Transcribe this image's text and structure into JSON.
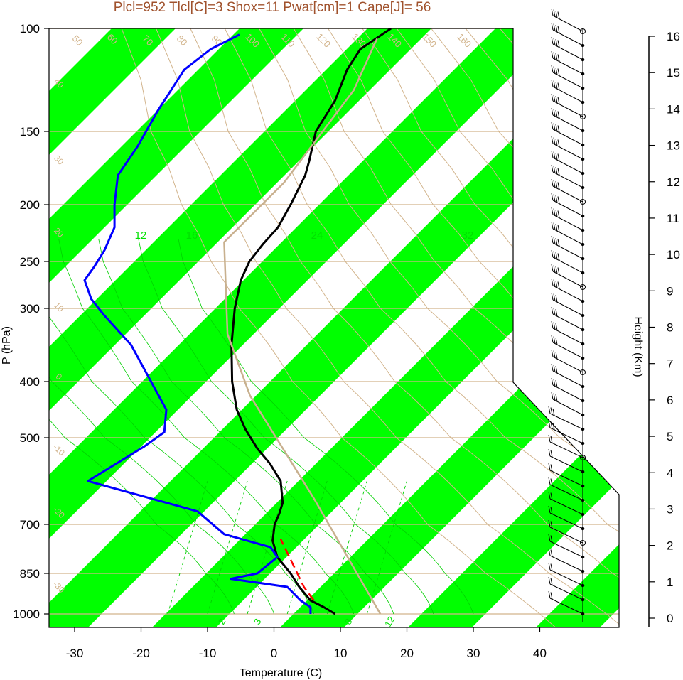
{
  "chart_data": {
    "type": "line",
    "title": "Plcl=952 Tlcl[C]=3 Shox=11 Pwat[cm]=1 Cape[J]= 56",
    "xlabel": "Temperature (C)",
    "ylabel": "P (hPa)",
    "ylabel_right": "Height (Km)",
    "x_ticks": [
      -30,
      -20,
      -10,
      0,
      10,
      20,
      30,
      40
    ],
    "pressure_ticks": [
      100,
      150,
      200,
      250,
      300,
      400,
      500,
      700,
      850,
      1000
    ],
    "height_ticks": [
      0,
      1,
      2,
      3,
      4,
      5,
      6,
      7,
      8,
      9,
      10,
      11,
      12,
      13,
      14,
      15,
      16
    ],
    "xlim": [
      -33,
      43
    ],
    "plim": [
      1050,
      100
    ],
    "dry_adiabat_labels": [
      "50",
      "60",
      "70",
      "80",
      "90",
      "100",
      "110",
      "120",
      "130",
      "140",
      "150",
      "160"
    ],
    "band_labels": [
      "40",
      "30",
      "20",
      "10",
      "0",
      "-10",
      "-20",
      "-30"
    ],
    "moist_labels": [
      "12",
      "16",
      "24",
      "32"
    ],
    "mixing_labels": [
      "2",
      "3",
      "8",
      "12"
    ],
    "right_labels": [
      "30",
      "20",
      "10",
      "0",
      "10",
      "20",
      "30"
    ],
    "colors": {
      "temperature": "#000000",
      "dewpoint": "#0000ff",
      "parcel": "#c8b08e",
      "lcl_parcel": "#ff0000",
      "band": "#00ff00",
      "dry_adiabat": "#d2b48c",
      "title": "#a0522d"
    },
    "series": [
      {
        "name": "Temperature",
        "points": [
          [
            9.2,
            1000
          ],
          [
            7.5,
            975
          ],
          [
            5.5,
            950
          ],
          [
            3.8,
            900
          ],
          [
            2.5,
            850
          ],
          [
            0.5,
            800
          ],
          [
            -0.2,
            750
          ],
          [
            0.1,
            700
          ],
          [
            0.8,
            675
          ],
          [
            1.3,
            650
          ],
          [
            1.0,
            600
          ],
          [
            -0.6,
            560
          ],
          [
            -2.5,
            525
          ],
          [
            -4.3,
            485
          ],
          [
            -5.6,
            450
          ],
          [
            -6.3,
            400
          ],
          [
            -6.4,
            350
          ],
          [
            -5.9,
            300
          ],
          [
            -5.0,
            270
          ],
          [
            -3.7,
            250
          ],
          [
            -1.7,
            235
          ],
          [
            0.6,
            220
          ],
          [
            2.5,
            200
          ],
          [
            4.7,
            180
          ],
          [
            5.3,
            170
          ],
          [
            6.3,
            150
          ],
          [
            9.2,
            135
          ],
          [
            11.0,
            120
          ],
          [
            13.0,
            110
          ],
          [
            17.6,
            100
          ]
        ]
      },
      {
        "name": "Dewpoint",
        "points": [
          [
            5.5,
            1000
          ],
          [
            5.5,
            975
          ],
          [
            4.0,
            950
          ],
          [
            2.0,
            900
          ],
          [
            -6.5,
            870
          ],
          [
            -2.5,
            850
          ],
          [
            0.5,
            800
          ],
          [
            -0.5,
            770
          ],
          [
            -7.5,
            730
          ],
          [
            -11.5,
            670
          ],
          [
            -28,
            600
          ],
          [
            -19.5,
            520
          ],
          [
            -16.5,
            490
          ],
          [
            -16.2,
            450
          ],
          [
            -18.5,
            400
          ],
          [
            -21.5,
            350
          ],
          [
            -25.5,
            310
          ],
          [
            -27.5,
            290
          ],
          [
            -28.5,
            270
          ],
          [
            -27.0,
            255
          ],
          [
            -25.5,
            240
          ],
          [
            -24.0,
            220
          ],
          [
            -24.0,
            200
          ],
          [
            -23.5,
            180
          ],
          [
            -20.5,
            160
          ],
          [
            -17.5,
            140
          ],
          [
            -13.5,
            120
          ],
          [
            -9.5,
            110
          ],
          [
            -5.2,
            103
          ]
        ]
      },
      {
        "name": "Parcel",
        "points": [
          [
            16.0,
            1000
          ],
          [
            6.0,
            640
          ],
          [
            -3.6,
            425
          ],
          [
            -7.0,
            335
          ],
          [
            -7.5,
            233
          ],
          [
            1.5,
            185
          ],
          [
            12.0,
            130
          ],
          [
            15.5,
            105
          ]
        ]
      },
      {
        "name": "LCL parcel",
        "points": [
          [
            6.0,
            950
          ],
          [
            4.5,
            900
          ],
          [
            1.0,
            745
          ]
        ]
      }
    ]
  }
}
